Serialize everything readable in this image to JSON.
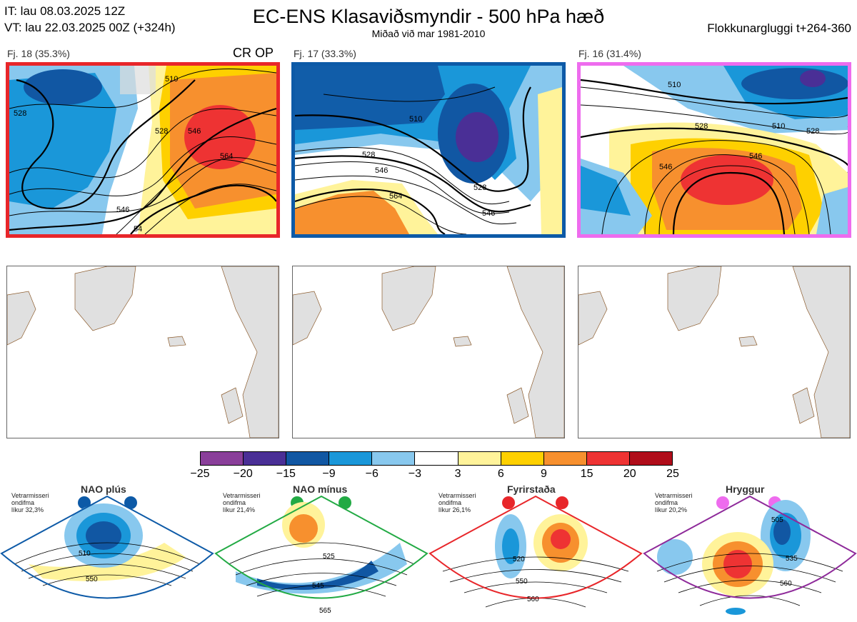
{
  "header": {
    "it": "IT: lau 08.03.2025 12Z",
    "vt": "VT: lau 22.03.2025 00Z  (+324h)",
    "title": "EC-ENS Klasaviðsmyndir - 500 hPa hæð",
    "subtitle": "Miðað við mar 1981-2010",
    "window": "Flokkunargluggi t+264-360"
  },
  "panels": [
    {
      "label": "Fj. 18 (35.3%)",
      "frame_color": "#e8262a",
      "tag": "CR OP",
      "contours": [
        "510",
        "528",
        "528",
        "546",
        "564",
        "546",
        "54"
      ]
    },
    {
      "label": "Fj. 17 (33.3%)",
      "frame_color": "#0d5aa7",
      "tag": "",
      "contours": [
        "510",
        "528",
        "546",
        "564",
        "528",
        "546"
      ]
    },
    {
      "label": "Fj. 16 (31.4%)",
      "frame_color": "#ee6cee",
      "tag": "",
      "contours": [
        "510",
        "528",
        "510",
        "528",
        "546",
        "546"
      ]
    }
  ],
  "colorbar": {
    "colors": [
      "#8a3f9a",
      "#4a2f96",
      "#1157a3",
      "#1a97d9",
      "#88c8ee",
      "#ffffff",
      "#fff39a",
      "#fed000",
      "#f7902e",
      "#ee3333",
      "#b00d1a"
    ],
    "ticks": [
      "−25",
      "−20",
      "−15",
      "−9",
      "−6",
      "−3",
      "3",
      "6",
      "9",
      "15",
      "20",
      "25"
    ]
  },
  "regimes": [
    {
      "name": "NAO plús",
      "color": "#0d5aa7",
      "note": [
        "Vetrarmisseri",
        "ondifma",
        "líkur 32,3%"
      ],
      "contours": [
        "510",
        "550"
      ]
    },
    {
      "name": "NAO mínus",
      "color": "#22aa44",
      "note": [
        "Vetrarmisseri",
        "ondifma",
        "líkur 21,4%"
      ],
      "contours": [
        "525",
        "545",
        "565"
      ]
    },
    {
      "name": "Fyrirstaða",
      "color": "#e8262a",
      "note": [
        "Vetrarmisseri",
        "ondifma",
        "líkur 26,1%"
      ],
      "contours": [
        "520",
        "550",
        "560"
      ]
    },
    {
      "name": "Hryggur",
      "color": "#ee6cee",
      "note": [
        "Vetrarmisseri",
        "ondifma",
        "líkur 20,2%"
      ],
      "contours": [
        "505",
        "535",
        "560"
      ]
    }
  ]
}
